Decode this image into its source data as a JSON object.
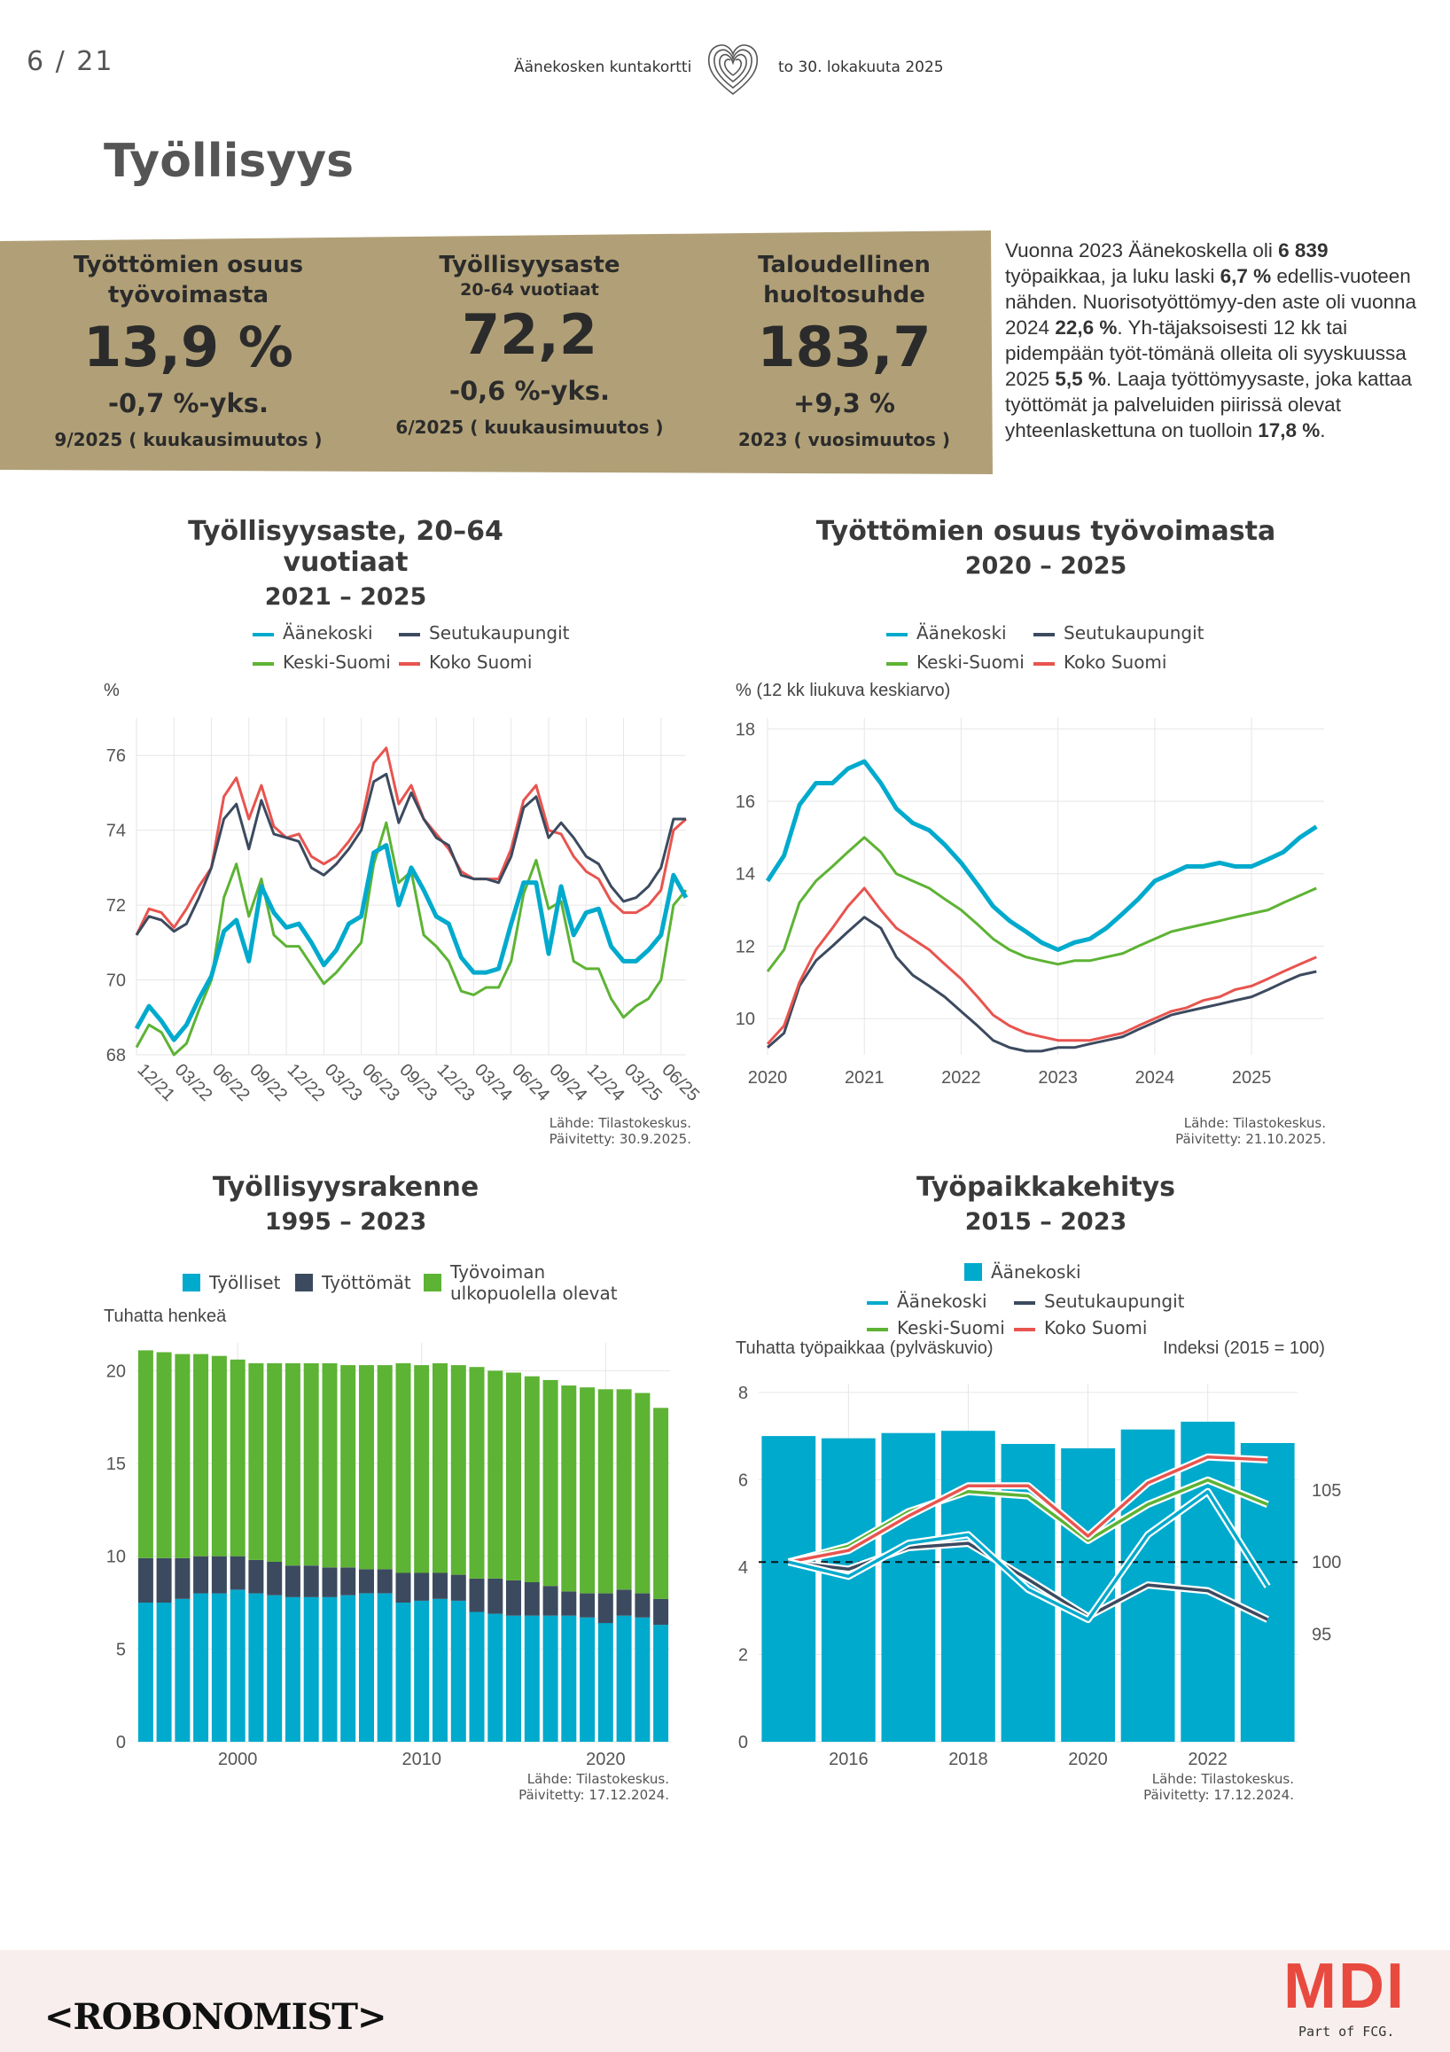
{
  "header": {
    "page_number": "6 / 21",
    "doc_title": "Äänekosken kuntakortti",
    "doc_date": "to 30. lokakuuta 2025",
    "section_title": "Työllisyys"
  },
  "kpis": [
    {
      "label": "Työttömien osuus työvoimasta",
      "sub": "",
      "value": "13,9 %",
      "change": "-0,7 %-yks.",
      "period": "9/2025 ( kuukausimuutos )"
    },
    {
      "label": "Työllisyysaste",
      "sub": "20-64 vuotiaat",
      "value": "72,2",
      "change": "-0,6 %-yks.",
      "period": "6/2025 ( kuukausimuutos )"
    },
    {
      "label": "Taloudellinen huoltosuhde",
      "sub": "",
      "value": "183,7",
      "change": "+9,3 %",
      "period": "2023 ( vuosimuutos )"
    }
  ],
  "intro": {
    "t1": "Vuonna 2023 Äänekoskella oli ",
    "b1": "6 839",
    "t2": " työpaikkaa, ja luku laski ",
    "b2": "6,7 %",
    "t3": " edellis-vuoteen nähden. Nuorisotyöttömyy-den aste oli vuonna 2024 ",
    "b3": "22,6 %",
    "t4": ". Yh-täjaksoisesti 12 kk tai pidempään työt-tömänä olleita oli syyskuussa 2025 ",
    "b4": "5,5 %",
    "t5": ". Laaja työttömyysaste, joka kattaa työttömät ja palveluiden piirissä olevat yhteenlaskettuna on tuolloin ",
    "b5": "17,8 %",
    "t6": "."
  },
  "colors": {
    "band": "#b1a077",
    "aanekoski": "#00aacd",
    "seutukaupungit": "#3c4a5f",
    "keski_suomi": "#5db334",
    "koko_suomi": "#e8544f",
    "grid": "#e6e6e6"
  },
  "footer": {
    "brand": "<ROBONOMIST>",
    "partner": "MDI",
    "partner_sub": "Part of FCG."
  },
  "chart_data": [
    {
      "id": "tyollisyysaste",
      "type": "line",
      "title": "Työllisyysaste, 20–64 vuotiaat",
      "subtitle": "2021 – 2025",
      "ylabel": "%",
      "ylim": [
        68,
        77
      ],
      "yticks": [
        68,
        70,
        72,
        74,
        76
      ],
      "x_labels": [
        "12/21",
        "03/22",
        "06/22",
        "09/22",
        "12/22",
        "03/23",
        "06/23",
        "09/23",
        "12/23",
        "03/24",
        "06/24",
        "09/24",
        "12/24",
        "03/25",
        "06/25"
      ],
      "x_label_index": [
        0,
        3,
        6,
        9,
        12,
        15,
        18,
        21,
        24,
        27,
        30,
        33,
        36,
        39,
        42
      ],
      "legend": [
        "Äänekoski",
        "Seutukaupungit",
        "Keski-Suomi",
        "Koko Suomi"
      ],
      "source": "Lähde: Tilastokeskus.",
      "updated": "Päivitetty: 30.9.2025.",
      "series": [
        {
          "name": "Äänekoski",
          "color_key": "aanekoski",
          "values": [
            68.7,
            69.3,
            68.9,
            68.4,
            68.8,
            69.5,
            70.1,
            71.3,
            71.6,
            70.5,
            72.5,
            71.8,
            71.4,
            71.5,
            71.0,
            70.4,
            70.8,
            71.5,
            71.7,
            73.4,
            73.6,
            72.0,
            73.0,
            72.4,
            71.7,
            71.5,
            70.6,
            70.2,
            70.2,
            70.3,
            71.5,
            72.6,
            72.6,
            70.7,
            72.5,
            71.2,
            71.8,
            71.9,
            70.9,
            70.5,
            70.5,
            70.8,
            71.2,
            72.8,
            72.2
          ]
        },
        {
          "name": "Seutukaupungit",
          "color_key": "seutukaupungit",
          "values": [
            71.2,
            71.7,
            71.6,
            71.3,
            71.5,
            72.2,
            73.0,
            74.3,
            74.7,
            73.5,
            74.8,
            73.9,
            73.8,
            73.7,
            73.0,
            72.8,
            73.1,
            73.5,
            74.0,
            75.3,
            75.5,
            74.2,
            75.0,
            74.3,
            73.8,
            73.6,
            72.8,
            72.7,
            72.7,
            72.6,
            73.3,
            74.6,
            74.9,
            73.8,
            74.2,
            73.8,
            73.3,
            73.1,
            72.5,
            72.1,
            72.2,
            72.5,
            73.0,
            74.3,
            74.3
          ]
        },
        {
          "name": "Keski-Suomi",
          "color_key": "keski_suomi",
          "values": [
            68.2,
            68.8,
            68.6,
            68.0,
            68.3,
            69.2,
            70.0,
            72.2,
            73.1,
            71.7,
            72.7,
            71.2,
            70.9,
            70.9,
            70.4,
            69.9,
            70.2,
            70.6,
            71.0,
            73.1,
            74.2,
            72.6,
            72.9,
            71.2,
            70.9,
            70.5,
            69.7,
            69.6,
            69.8,
            69.8,
            70.5,
            72.3,
            73.2,
            71.9,
            72.1,
            70.5,
            70.3,
            70.3,
            69.5,
            69.0,
            69.3,
            69.5,
            70.0,
            72.0,
            72.4
          ]
        },
        {
          "name": "Koko Suomi",
          "color_key": "koko_suomi",
          "values": [
            71.2,
            71.9,
            71.8,
            71.4,
            71.9,
            72.5,
            73.0,
            74.9,
            75.4,
            74.3,
            75.2,
            74.1,
            73.8,
            73.9,
            73.3,
            73.1,
            73.3,
            73.7,
            74.2,
            75.8,
            76.2,
            74.7,
            75.2,
            74.3,
            73.9,
            73.5,
            72.9,
            72.7,
            72.7,
            72.7,
            73.5,
            74.8,
            75.2,
            74.0,
            73.9,
            73.3,
            72.9,
            72.7,
            72.1,
            71.8,
            71.8,
            72.0,
            72.4,
            74.0,
            74.3
          ]
        }
      ]
    },
    {
      "id": "tyottomat",
      "type": "line",
      "title": "Työttömien osuus työvoimasta",
      "subtitle": "2020 – 2025",
      "ylabel": "% (12 kk liukuva keskiarvo)",
      "ylim": [
        9,
        18.3
      ],
      "yticks": [
        10,
        12,
        14,
        16,
        18
      ],
      "x_labels": [
        "2020",
        "2021",
        "2022",
        "2023",
        "2024",
        "2025"
      ],
      "legend": [
        "Äänekoski",
        "Seutukaupungit",
        "Keski-Suomi",
        "Koko Suomi"
      ],
      "source": "Lähde: Tilastokeskus.",
      "updated": "Päivitetty: 21.10.2025.",
      "series": [
        {
          "name": "Äänekoski",
          "color_key": "aanekoski",
          "x": [
            2020.0,
            2020.17,
            2020.33,
            2020.5,
            2020.67,
            2020.83,
            2021.0,
            2021.17,
            2021.33,
            2021.5,
            2021.67,
            2021.83,
            2022.0,
            2022.17,
            2022.33,
            2022.5,
            2022.67,
            2022.83,
            2023.0,
            2023.17,
            2023.33,
            2023.5,
            2023.67,
            2023.83,
            2024.0,
            2024.17,
            2024.33,
            2024.5,
            2024.67,
            2024.83,
            2025.0,
            2025.17,
            2025.33,
            2025.5,
            2025.67
          ],
          "values": [
            13.8,
            14.5,
            15.9,
            16.5,
            16.5,
            16.9,
            17.1,
            16.5,
            15.8,
            15.4,
            15.2,
            14.8,
            14.3,
            13.7,
            13.1,
            12.7,
            12.4,
            12.1,
            11.9,
            12.1,
            12.2,
            12.5,
            12.9,
            13.3,
            13.8,
            14.0,
            14.2,
            14.2,
            14.3,
            14.2,
            14.2,
            14.4,
            14.6,
            15.0,
            15.3
          ]
        },
        {
          "name": "Seutukaupungit",
          "color_key": "seutukaupungit",
          "x": [
            2020.0,
            2020.17,
            2020.33,
            2020.5,
            2020.67,
            2020.83,
            2021.0,
            2021.17,
            2021.33,
            2021.5,
            2021.67,
            2021.83,
            2022.0,
            2022.17,
            2022.33,
            2022.5,
            2022.67,
            2022.83,
            2023.0,
            2023.17,
            2023.33,
            2023.5,
            2023.67,
            2023.83,
            2024.0,
            2024.17,
            2024.33,
            2024.5,
            2024.67,
            2024.83,
            2025.0,
            2025.17,
            2025.33,
            2025.5,
            2025.67
          ],
          "values": [
            9.2,
            9.6,
            10.9,
            11.6,
            12.0,
            12.4,
            12.8,
            12.5,
            11.7,
            11.2,
            10.9,
            10.6,
            10.2,
            9.8,
            9.4,
            9.2,
            9.1,
            9.1,
            9.2,
            9.2,
            9.3,
            9.4,
            9.5,
            9.7,
            9.9,
            10.1,
            10.2,
            10.3,
            10.4,
            10.5,
            10.6,
            10.8,
            11.0,
            11.2,
            11.3
          ]
        },
        {
          "name": "Keski-Suomi",
          "color_key": "keski_suomi",
          "x": [
            2020.0,
            2020.17,
            2020.33,
            2020.5,
            2020.67,
            2020.83,
            2021.0,
            2021.17,
            2021.33,
            2021.5,
            2021.67,
            2021.83,
            2022.0,
            2022.17,
            2022.33,
            2022.5,
            2022.67,
            2022.83,
            2023.0,
            2023.17,
            2023.33,
            2023.5,
            2023.67,
            2023.83,
            2024.0,
            2024.17,
            2024.33,
            2024.5,
            2024.67,
            2024.83,
            2025.0,
            2025.17,
            2025.33,
            2025.5,
            2025.67
          ],
          "values": [
            11.3,
            11.9,
            13.2,
            13.8,
            14.2,
            14.6,
            15.0,
            14.6,
            14.0,
            13.8,
            13.6,
            13.3,
            13.0,
            12.6,
            12.2,
            11.9,
            11.7,
            11.6,
            11.5,
            11.6,
            11.6,
            11.7,
            11.8,
            12.0,
            12.2,
            12.4,
            12.5,
            12.6,
            12.7,
            12.8,
            12.9,
            13.0,
            13.2,
            13.4,
            13.6
          ]
        },
        {
          "name": "Koko Suomi",
          "color_key": "koko_suomi",
          "x": [
            2020.0,
            2020.17,
            2020.33,
            2020.5,
            2020.67,
            2020.83,
            2021.0,
            2021.17,
            2021.33,
            2021.5,
            2021.67,
            2021.83,
            2022.0,
            2022.17,
            2022.33,
            2022.5,
            2022.67,
            2022.83,
            2023.0,
            2023.17,
            2023.33,
            2023.5,
            2023.67,
            2023.83,
            2024.0,
            2024.17,
            2024.33,
            2024.5,
            2024.67,
            2024.83,
            2025.0,
            2025.17,
            2025.33,
            2025.5,
            2025.67
          ],
          "values": [
            9.3,
            9.8,
            11.0,
            11.9,
            12.5,
            13.1,
            13.6,
            13.0,
            12.5,
            12.2,
            11.9,
            11.5,
            11.1,
            10.6,
            10.1,
            9.8,
            9.6,
            9.5,
            9.4,
            9.4,
            9.4,
            9.5,
            9.6,
            9.8,
            10.0,
            10.2,
            10.3,
            10.5,
            10.6,
            10.8,
            10.9,
            11.1,
            11.3,
            11.5,
            11.7
          ]
        }
      ]
    },
    {
      "id": "tyollisyysrakenne",
      "type": "bar",
      "stacked": true,
      "title": "Työllisyysrakenne",
      "subtitle": "1995 – 2023",
      "ylabel": "Tuhatta henkeä",
      "ylim": [
        0,
        21.5
      ],
      "yticks": [
        0,
        5,
        10,
        15,
        20
      ],
      "xticks": [
        2000,
        2010,
        2020
      ],
      "years": [
        1995,
        1996,
        1997,
        1998,
        1999,
        2000,
        2001,
        2002,
        2003,
        2004,
        2005,
        2006,
        2007,
        2008,
        2009,
        2010,
        2011,
        2012,
        2013,
        2014,
        2015,
        2016,
        2017,
        2018,
        2019,
        2020,
        2021,
        2022,
        2023
      ],
      "legend": [
        "Työlliset",
        "Työttömät",
        "Työvoiman ulkopuolella olevat"
      ],
      "source": "Lähde: Tilastokeskus.",
      "updated": "Päivitetty: 17.12.2024.",
      "series": [
        {
          "name": "Työlliset",
          "color_key": "aanekoski",
          "values": [
            7.5,
            7.5,
            7.7,
            8.0,
            8.0,
            8.2,
            8.0,
            7.9,
            7.8,
            7.8,
            7.8,
            7.9,
            8.0,
            8.0,
            7.5,
            7.6,
            7.7,
            7.6,
            7.0,
            6.9,
            6.8,
            6.8,
            6.8,
            6.8,
            6.7,
            6.4,
            6.8,
            6.7,
            6.3
          ]
        },
        {
          "name": "Työttömät",
          "color_key": "seutukaupungit",
          "values": [
            2.4,
            2.4,
            2.2,
            2.0,
            2.0,
            1.8,
            1.8,
            1.8,
            1.7,
            1.7,
            1.6,
            1.5,
            1.3,
            1.3,
            1.6,
            1.5,
            1.4,
            1.4,
            1.8,
            1.9,
            1.9,
            1.8,
            1.6,
            1.3,
            1.3,
            1.6,
            1.4,
            1.3,
            1.4
          ]
        },
        {
          "name": "Työvoiman ulkopuolella olevat",
          "color_key": "keski_suomi",
          "values": [
            11.2,
            11.1,
            11.0,
            10.9,
            10.8,
            10.6,
            10.6,
            10.7,
            10.9,
            10.9,
            11.0,
            10.9,
            11.0,
            11.0,
            11.3,
            11.2,
            11.3,
            11.3,
            11.4,
            11.2,
            11.2,
            11.1,
            11.1,
            11.1,
            11.1,
            11.0,
            10.8,
            10.8,
            10.3
          ]
        }
      ]
    },
    {
      "id": "tyopaikkakehitys",
      "type": "bar+line",
      "title": "Työpaikkakehitys",
      "subtitle": "2015 – 2023",
      "ylabel_left": "Tuhatta työpaikkaa (pylväskuvio)",
      "ylabel_right": "Indeksi (2015 = 100)",
      "ylim_left": [
        0,
        8.2
      ],
      "yticks_left": [
        0,
        2,
        4,
        6,
        8
      ],
      "ylim_right": [
        87.5,
        112.4
      ],
      "yticks_right": [
        95,
        100,
        105
      ],
      "reference_index": 100,
      "years": [
        2015,
        2016,
        2017,
        2018,
        2019,
        2020,
        2021,
        2022,
        2023
      ],
      "xticks": [
        2016,
        2018,
        2020,
        2022
      ],
      "legend_bar": "Äänekoski",
      "legend": [
        "Äänekoski",
        "Seutukaupungit",
        "Keski-Suomi",
        "Koko Suomi"
      ],
      "source": "Lähde: Tilastokeskus.",
      "updated": "Päivitetty: 17.12.2024.",
      "bars": {
        "name": "Äänekoski",
        "color_key": "aanekoski",
        "values": [
          7.0,
          6.95,
          7.07,
          7.12,
          6.82,
          6.72,
          7.15,
          7.33,
          6.84
        ]
      },
      "series": [
        {
          "name": "Äänekoski",
          "color_key": "aanekoski",
          "values": [
            100,
            99.0,
            101.3,
            101.9,
            98.1,
            96.0,
            101.9,
            104.9,
            98.3
          ]
        },
        {
          "name": "Seutukaupungit",
          "color_key": "seutukaupungit",
          "values": [
            100,
            99.5,
            101.0,
            101.3,
            98.8,
            96.2,
            98.4,
            98.0,
            96.0
          ]
        },
        {
          "name": "Keski-Suomi",
          "color_key": "keski_suomi",
          "values": [
            100,
            101.1,
            103.5,
            104.9,
            104.6,
            101.5,
            104.0,
            105.7,
            104.0
          ]
        },
        {
          "name": "Koko Suomi",
          "color_key": "koko_suomi",
          "values": [
            100,
            100.8,
            103.2,
            105.3,
            105.3,
            101.8,
            105.5,
            107.3,
            107.1
          ]
        }
      ]
    }
  ]
}
